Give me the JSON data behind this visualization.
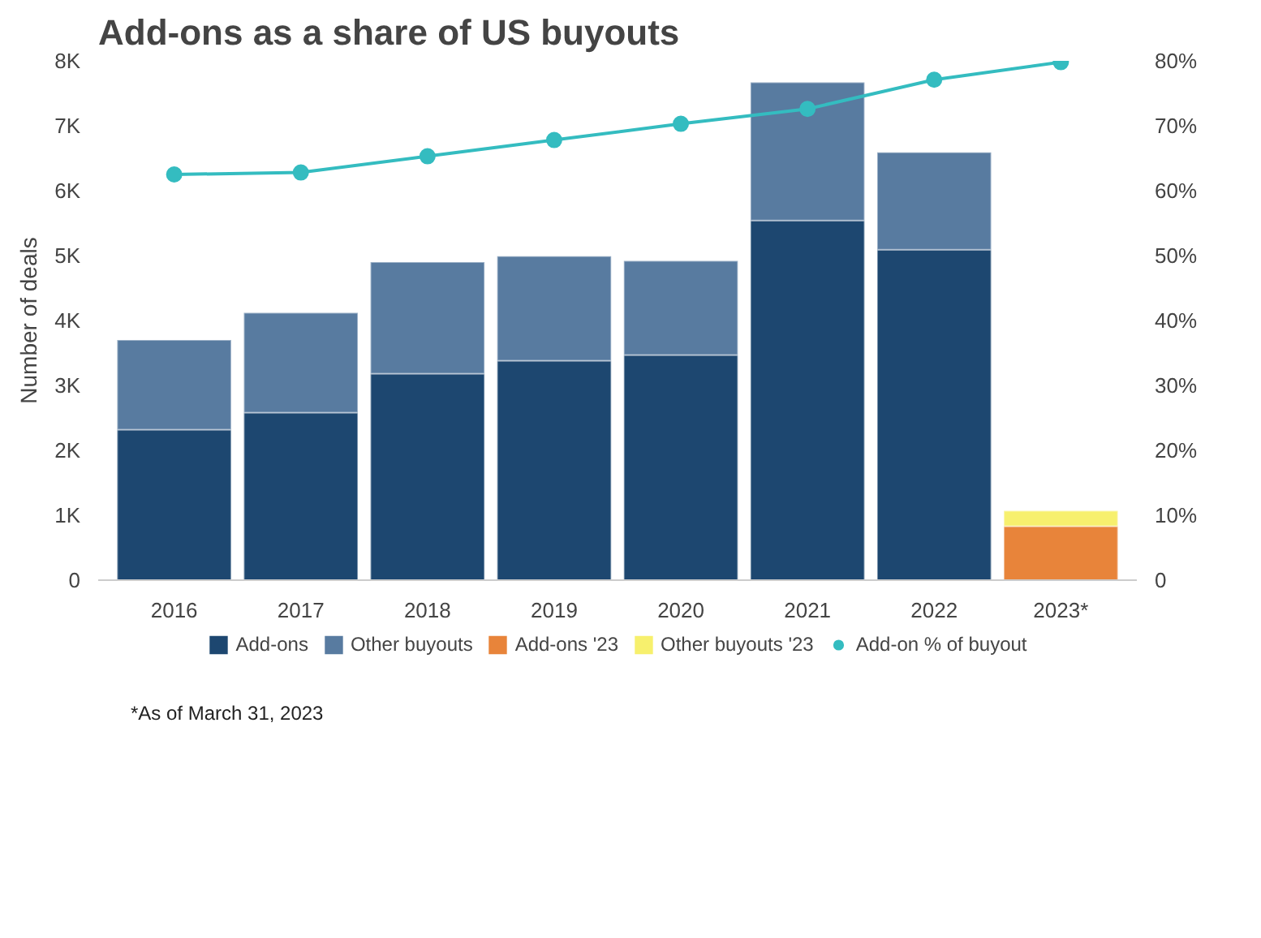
{
  "chart_data": {
    "type": "bar",
    "title": "Add-ons as a share of US buyouts",
    "ylabel": "Number of deals",
    "stacked": true,
    "legend": "bottom",
    "grid": false,
    "categories": [
      "2016",
      "2017",
      "2018",
      "2019",
      "2020",
      "2021",
      "2022",
      "2023*"
    ],
    "series": [
      {
        "name": "Add-ons",
        "color": "#1d4770",
        "values": [
          2320,
          2580,
          3180,
          3380,
          3470,
          5540,
          5090,
          null
        ]
      },
      {
        "name": "Other buyouts",
        "color": "#587ba0",
        "values": [
          1380,
          1540,
          1720,
          1610,
          1450,
          2130,
          1500,
          null
        ]
      },
      {
        "name": "Add-ons '23",
        "color": "#e8843a",
        "values": [
          null,
          null,
          null,
          null,
          null,
          null,
          null,
          830
        ]
      },
      {
        "name": "Other buyouts '23",
        "color": "#f7f06d",
        "values": [
          null,
          null,
          null,
          null,
          null,
          null,
          null,
          240
        ]
      },
      {
        "name": "Add-on % of buyout",
        "color": "#34bcc0",
        "type": "line",
        "axis": "y2",
        "marker": "circle",
        "values": [
          62.5,
          62.8,
          65.3,
          67.8,
          70.3,
          72.6,
          77.1,
          79.8
        ]
      }
    ],
    "ylim": [
      0,
      8000
    ],
    "yticks": [
      {
        "value": 0,
        "label": "0"
      },
      {
        "value": 1000,
        "label": "1K"
      },
      {
        "value": 2000,
        "label": "2K"
      },
      {
        "value": 3000,
        "label": "3K"
      },
      {
        "value": 4000,
        "label": "4K"
      },
      {
        "value": 5000,
        "label": "5K"
      },
      {
        "value": 6000,
        "label": "6K"
      },
      {
        "value": 7000,
        "label": "7K"
      },
      {
        "value": 8000,
        "label": "8K"
      }
    ],
    "y2lim": [
      0,
      80
    ],
    "y2ticks": [
      {
        "value": 0,
        "label": "0"
      },
      {
        "value": 10,
        "label": "10%"
      },
      {
        "value": 20,
        "label": "20%"
      },
      {
        "value": 30,
        "label": "30%"
      },
      {
        "value": 40,
        "label": "40%"
      },
      {
        "value": 50,
        "label": "50%"
      },
      {
        "value": 60,
        "label": "60%"
      },
      {
        "value": 70,
        "label": "70%"
      },
      {
        "value": 80,
        "label": "80%"
      }
    ],
    "annotations": [
      "*As of March 31, 2023"
    ]
  }
}
